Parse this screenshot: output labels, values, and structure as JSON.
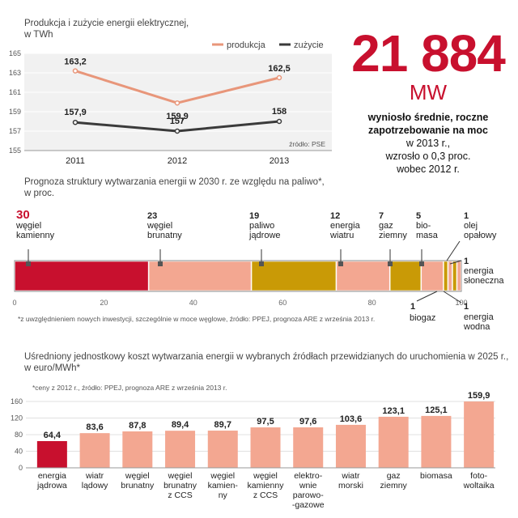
{
  "chart_data": [
    {
      "type": "line",
      "title": "Produkcja i zużycie energii elektrycznej,",
      "subtitle": "w TWh",
      "categories": [
        "2011",
        "2012",
        "2013"
      ],
      "series": [
        {
          "name": "produkcja",
          "values": [
            163.2,
            159.9,
            162.5
          ],
          "labels": [
            "163,2",
            "159,9",
            "162,5"
          ],
          "color": "#e8967a"
        },
        {
          "name": "zużycie",
          "values": [
            157.9,
            157,
            158
          ],
          "labels": [
            "157,9",
            "157",
            "158"
          ],
          "color": "#3a3a3a"
        }
      ],
      "ylim": [
        155,
        165
      ],
      "yticks": [
        "165",
        "163",
        "161",
        "159",
        "157",
        "155"
      ],
      "source": "źródło: PSE",
      "legend": "top-right",
      "grid": true
    },
    {
      "type": "bar",
      "stacked": true,
      "title": "Prognoza struktury wytwarzania energii w 2030 r. ze względu na paliwo*,",
      "subtitle": "w proc.",
      "segments": [
        {
          "value": 30,
          "label": [
            "węgiel",
            "kamienny"
          ],
          "color": "#c8102e"
        },
        {
          "value": 23,
          "label": [
            "węgiel",
            "brunatny"
          ],
          "color": "#f3a791"
        },
        {
          "value": 19,
          "label": [
            "paliwo",
            "jądrowe"
          ],
          "color": "#c99a06"
        },
        {
          "value": 12,
          "label": [
            "energia",
            "wiatru"
          ],
          "color": "#f3a791"
        },
        {
          "value": 7,
          "label": [
            "gaz",
            "ziemny"
          ],
          "color": "#c99a06"
        },
        {
          "value": 5,
          "label": [
            "bio-",
            "masa"
          ],
          "color": "#f3a791"
        },
        {
          "value": 1,
          "label": [
            "biogaz"
          ],
          "color": "#c99a06"
        },
        {
          "value": 1,
          "label": [
            "energia",
            "wodna"
          ],
          "color": "#f3a791"
        },
        {
          "value": 1,
          "label": [
            "energia",
            "słoneczna"
          ],
          "color": "#c99a06"
        },
        {
          "value": 1,
          "label": [
            "olej",
            "opałowy"
          ],
          "color": "#f3a791"
        }
      ],
      "xticks": [
        "0",
        "20",
        "40",
        "60",
        "80",
        "100"
      ],
      "footnote": "*z uwzględnieniem nowych inwestycji, szczególnie w moce węglowe, źródło: PPEJ, prognoza ARE z września 2013 r."
    },
    {
      "type": "bar",
      "title": "Uśredniony jednostkowy koszt wytwarzania energii w wybranych źródłach przewidzianych do uruchomienia w 2025 r.,",
      "subtitle": "w euro/MWh*",
      "note": "*ceny z 2012 r., źródło: PPEJ, prognoza ARE z września 2013 r.",
      "categories": [
        [
          "energia",
          "jądrowa"
        ],
        [
          "wiatr",
          "lądowy"
        ],
        [
          "węgiel",
          "brunatny"
        ],
        [
          "węgiel",
          "brunatny",
          "z CCS"
        ],
        [
          "węgiel",
          "kamien-",
          "ny"
        ],
        [
          "węgiel",
          "kamienny",
          "z CCS"
        ],
        [
          "elektro-",
          "wnie",
          "parowo-",
          "-gazowe"
        ],
        [
          "wiatr",
          "morski"
        ],
        [
          "gaz",
          "ziemny"
        ],
        [
          "biomasa"
        ],
        [
          "foto-",
          "woltaika"
        ]
      ],
      "values": [
        64.4,
        83.6,
        87.8,
        89.4,
        89.7,
        97.5,
        97.6,
        103.6,
        123.1,
        125.1,
        159.9
      ],
      "labels": [
        "64,4",
        "83,6",
        "87,8",
        "89,4",
        "89,7",
        "97,5",
        "97,6",
        "103,6",
        "123,1",
        "125,1",
        "159,9"
      ],
      "yticks": [
        "160",
        "120",
        "80",
        "40",
        "0"
      ],
      "ylim": [
        0,
        160
      ],
      "highlight_color": "#c8102e",
      "bar_color": "#f3a791"
    }
  ],
  "headline": {
    "number": "21 884",
    "unit": "MW",
    "text": [
      "wyniosło średnie, roczne",
      "zapotrzebowanie na moc",
      "w 2013 r.,",
      "wzrosło o 0,3 proc.",
      "wobec 2012 r."
    ]
  }
}
